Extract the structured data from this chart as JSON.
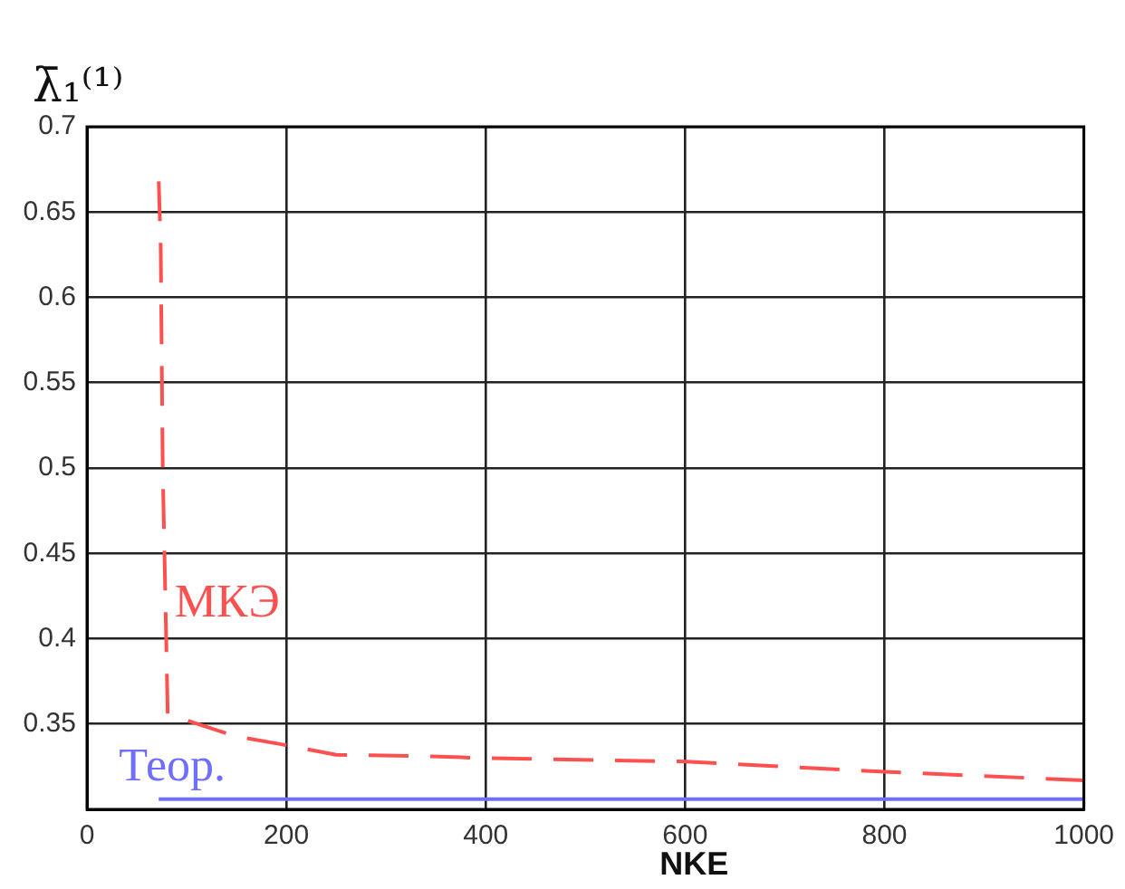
{
  "chart_data": {
    "type": "line",
    "xlabel": "NKE",
    "ylabel": "λ̄₁⁽¹⁾",
    "xlim": [
      0,
      1000
    ],
    "xticks": [
      0,
      200,
      400,
      600,
      800,
      1000
    ],
    "ylim": [
      0.3,
      0.7
    ],
    "yticks": [
      {
        "value": 0.3,
        "label": null
      },
      0.35,
      0.4,
      0.45,
      0.5,
      0.55,
      0.6,
      0.65,
      0.7
    ],
    "grid": true,
    "legend": false,
    "marker": "none",
    "series": [
      {
        "name": "МКЭ",
        "color": "#ff5050",
        "line_style": "dashed",
        "x": [
          72,
          74,
          76,
          81,
          106,
          148,
          196,
          250,
          346,
          400,
          600,
          800,
          1000
        ],
        "values": [
          0.668,
          0.629,
          0.5,
          0.356,
          0.351,
          0.343,
          0.338,
          0.332,
          0.331,
          0.33,
          0.328,
          0.322,
          0.317
        ]
      },
      {
        "name": "Теор.",
        "color": "#6f6fff",
        "line_style": "solid",
        "x": [
          72,
          1000
        ],
        "values": [
          0.306,
          0.306
        ]
      }
    ]
  }
}
